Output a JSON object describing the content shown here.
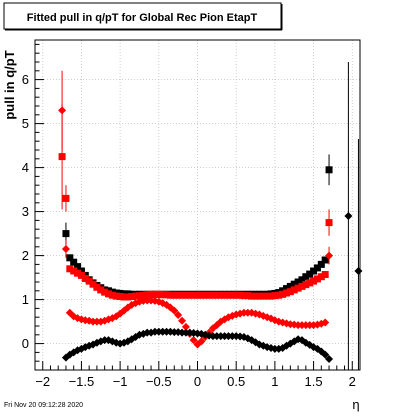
{
  "title": "Fitted pull in q/pT for Global Rec Pion EtapT",
  "footer": "Fri Nov 20 09:12:28 2020",
  "chart_data": {
    "type": "scatter",
    "title": "Fitted pull in q/pT for Global Rec Pion EtapT",
    "xlabel": "η",
    "ylabel": "pull in q/pT",
    "xlim": [
      -2.1,
      2.1
    ],
    "ylim": [
      -0.6,
      6.9
    ],
    "grid": true,
    "xticks": [
      -2,
      -1.5,
      -1,
      -0.5,
      0,
      0.5,
      1,
      1.5,
      2
    ],
    "xtick_labels": [
      "−2",
      "−1.5",
      "−1",
      "−0.5",
      "0",
      "0.5",
      "1",
      "1.5",
      "2"
    ],
    "yticks": [
      0,
      1,
      2,
      3,
      4,
      5,
      6
    ],
    "ytick_labels": [
      "0",
      "1",
      "2",
      "3",
      "4",
      "5",
      "6"
    ],
    "colors": {
      "black": "#000000",
      "red": "#ff0000",
      "grid": "#c0c0c0"
    },
    "series": [
      {
        "color": "#000000",
        "marker": "square",
        "x": [
          -1.7,
          -1.65,
          -1.6,
          -1.55,
          -1.5,
          -1.45,
          -1.4,
          -1.35,
          -1.3,
          -1.25,
          -1.2,
          -1.15,
          -1.1,
          -1.05,
          -1.0,
          -0.95,
          -0.9,
          -0.85,
          -0.8,
          -0.75,
          -0.7,
          -0.65,
          -0.6,
          -0.55,
          -0.5,
          -0.45,
          -0.4,
          -0.35,
          -0.3,
          -0.25,
          -0.2,
          -0.15,
          -0.1,
          -0.05,
          0.0,
          0.05,
          0.1,
          0.15,
          0.2,
          0.25,
          0.3,
          0.35,
          0.4,
          0.45,
          0.5,
          0.55,
          0.6,
          0.65,
          0.7,
          0.75,
          0.8,
          0.85,
          0.9,
          0.95,
          1.0,
          1.05,
          1.1,
          1.15,
          1.2,
          1.25,
          1.3,
          1.35,
          1.4,
          1.45,
          1.5,
          1.55,
          1.6,
          1.65,
          1.7
        ],
        "y": [
          2.5,
          1.95,
          1.85,
          1.75,
          1.65,
          1.55,
          1.45,
          1.38,
          1.32,
          1.27,
          1.22,
          1.2,
          1.17,
          1.15,
          1.14,
          1.13,
          1.13,
          1.12,
          1.12,
          1.12,
          1.12,
          1.12,
          1.12,
          1.12,
          1.12,
          1.12,
          1.12,
          1.12,
          1.12,
          1.12,
          1.12,
          1.12,
          1.12,
          1.12,
          1.12,
          1.12,
          1.12,
          1.12,
          1.12,
          1.12,
          1.12,
          1.12,
          1.12,
          1.12,
          1.12,
          1.12,
          1.12,
          1.12,
          1.12,
          1.12,
          1.12,
          1.12,
          1.12,
          1.13,
          1.14,
          1.16,
          1.2,
          1.25,
          1.3,
          1.35,
          1.4,
          1.45,
          1.52,
          1.58,
          1.65,
          1.72,
          1.8,
          1.9,
          3.95
        ],
        "yerr": [
          0.25,
          0.05,
          0.03,
          0.02,
          0.02,
          0.02,
          0.02,
          0.02,
          0.02,
          0.02,
          0.02,
          0.02,
          0.02,
          0.02,
          0.02,
          0.02,
          0.02,
          0.02,
          0.02,
          0.02,
          0.02,
          0.02,
          0.02,
          0.02,
          0.02,
          0.02,
          0.02,
          0.02,
          0.02,
          0.02,
          0.02,
          0.02,
          0.02,
          0.02,
          0.02,
          0.02,
          0.02,
          0.02,
          0.02,
          0.02,
          0.02,
          0.02,
          0.02,
          0.02,
          0.02,
          0.02,
          0.02,
          0.02,
          0.02,
          0.02,
          0.02,
          0.02,
          0.02,
          0.02,
          0.02,
          0.02,
          0.02,
          0.02,
          0.02,
          0.02,
          0.02,
          0.02,
          0.02,
          0.02,
          0.02,
          0.02,
          0.02,
          0.05,
          0.35
        ]
      },
      {
        "color": "#ff0000",
        "marker": "square",
        "x": [
          -1.75,
          -1.7,
          -1.65,
          -1.6,
          -1.55,
          -1.5,
          -1.45,
          -1.4,
          -1.35,
          -1.3,
          -1.25,
          -1.2,
          -1.15,
          -1.1,
          -1.05,
          -1.0,
          -0.95,
          -0.9,
          -0.85,
          -0.8,
          -0.75,
          -0.7,
          -0.65,
          -0.6,
          -0.55,
          -0.5,
          -0.45,
          -0.4,
          -0.35,
          -0.3,
          -0.25,
          -0.2,
          -0.15,
          -0.1,
          -0.05,
          0.0,
          0.05,
          0.1,
          0.15,
          0.2,
          0.25,
          0.3,
          0.35,
          0.4,
          0.45,
          0.5,
          0.55,
          0.6,
          0.65,
          0.7,
          0.75,
          0.8,
          0.85,
          0.9,
          0.95,
          1.0,
          1.05,
          1.1,
          1.15,
          1.2,
          1.25,
          1.3,
          1.35,
          1.4,
          1.45,
          1.5,
          1.55,
          1.6,
          1.65,
          1.7
        ],
        "y": [
          4.25,
          3.3,
          1.7,
          1.65,
          1.6,
          1.55,
          1.48,
          1.42,
          1.35,
          1.28,
          1.22,
          1.17,
          1.13,
          1.1,
          1.08,
          1.07,
          1.06,
          1.06,
          1.07,
          1.08,
          1.09,
          1.1,
          1.11,
          1.12,
          1.12,
          1.12,
          1.11,
          1.11,
          1.1,
          1.1,
          1.1,
          1.1,
          1.1,
          1.1,
          1.1,
          1.1,
          1.1,
          1.1,
          1.1,
          1.1,
          1.1,
          1.1,
          1.1,
          1.1,
          1.1,
          1.1,
          1.1,
          1.09,
          1.09,
          1.08,
          1.08,
          1.08,
          1.08,
          1.08,
          1.08,
          1.09,
          1.1,
          1.12,
          1.15,
          1.18,
          1.22,
          1.26,
          1.3,
          1.34,
          1.38,
          1.42,
          1.47,
          1.52,
          1.57,
          2.75
        ],
        "yerr": [
          1.2,
          0.3,
          0.05,
          0.03,
          0.02,
          0.02,
          0.02,
          0.02,
          0.02,
          0.02,
          0.02,
          0.02,
          0.02,
          0.02,
          0.02,
          0.02,
          0.02,
          0.02,
          0.02,
          0.02,
          0.02,
          0.02,
          0.02,
          0.02,
          0.02,
          0.02,
          0.02,
          0.02,
          0.02,
          0.02,
          0.02,
          0.02,
          0.02,
          0.02,
          0.02,
          0.02,
          0.02,
          0.02,
          0.02,
          0.02,
          0.02,
          0.02,
          0.02,
          0.02,
          0.02,
          0.02,
          0.02,
          0.02,
          0.02,
          0.02,
          0.02,
          0.02,
          0.02,
          0.02,
          0.02,
          0.02,
          0.02,
          0.02,
          0.02,
          0.02,
          0.02,
          0.02,
          0.02,
          0.02,
          0.02,
          0.02,
          0.02,
          0.02,
          0.05,
          0.3
        ]
      },
      {
        "color": "#ff0000",
        "marker": "diamond",
        "x": [
          -1.75,
          -1.7,
          -1.65,
          -1.6,
          -1.55,
          -1.5,
          -1.45,
          -1.4,
          -1.35,
          -1.3,
          -1.25,
          -1.2,
          -1.15,
          -1.1,
          -1.05,
          -1.0,
          -0.95,
          -0.9,
          -0.85,
          -0.8,
          -0.75,
          -0.7,
          -0.65,
          -0.6,
          -0.55,
          -0.5,
          -0.45,
          -0.4,
          -0.35,
          -0.3,
          -0.25,
          -0.2,
          -0.15,
          -0.1,
          -0.05,
          0.0,
          0.05,
          0.1,
          0.15,
          0.2,
          0.25,
          0.3,
          0.35,
          0.4,
          0.45,
          0.5,
          0.55,
          0.6,
          0.65,
          0.7,
          0.75,
          0.8,
          0.85,
          0.9,
          0.95,
          1.0,
          1.05,
          1.1,
          1.15,
          1.2,
          1.25,
          1.3,
          1.35,
          1.4,
          1.45,
          1.5,
          1.55,
          1.6,
          1.65,
          1.7
        ],
        "y": [
          5.3,
          2.15,
          0.7,
          0.62,
          0.58,
          0.55,
          0.53,
          0.52,
          0.5,
          0.5,
          0.5,
          0.52,
          0.55,
          0.58,
          0.62,
          0.68,
          0.75,
          0.82,
          0.88,
          0.92,
          0.95,
          0.97,
          0.98,
          0.98,
          0.97,
          0.95,
          0.92,
          0.88,
          0.82,
          0.75,
          0.65,
          0.52,
          0.38,
          0.22,
          0.08,
          -0.02,
          0.05,
          0.15,
          0.25,
          0.35,
          0.42,
          0.5,
          0.55,
          0.6,
          0.63,
          0.66,
          0.68,
          0.7,
          0.7,
          0.7,
          0.68,
          0.66,
          0.63,
          0.6,
          0.57,
          0.53,
          0.5,
          0.48,
          0.46,
          0.44,
          0.43,
          0.42,
          0.42,
          0.42,
          0.42,
          0.42,
          0.43,
          0.45,
          0.48,
          2.0
        ],
        "yerr": [
          0.9,
          0.2,
          0.03,
          0.02,
          0.02,
          0.02,
          0.02,
          0.02,
          0.02,
          0.02,
          0.02,
          0.02,
          0.02,
          0.02,
          0.02,
          0.02,
          0.02,
          0.02,
          0.02,
          0.02,
          0.02,
          0.02,
          0.02,
          0.02,
          0.02,
          0.02,
          0.02,
          0.02,
          0.02,
          0.02,
          0.02,
          0.02,
          0.02,
          0.02,
          0.02,
          0.02,
          0.02,
          0.02,
          0.02,
          0.02,
          0.02,
          0.02,
          0.02,
          0.02,
          0.02,
          0.02,
          0.02,
          0.02,
          0.02,
          0.02,
          0.02,
          0.02,
          0.02,
          0.02,
          0.02,
          0.02,
          0.02,
          0.02,
          0.02,
          0.02,
          0.02,
          0.02,
          0.02,
          0.02,
          0.02,
          0.02,
          0.02,
          0.02,
          0.05,
          0.2
        ]
      },
      {
        "color": "#000000",
        "marker": "diamond",
        "x": [
          -1.7,
          -1.65,
          -1.6,
          -1.55,
          -1.5,
          -1.45,
          -1.4,
          -1.35,
          -1.3,
          -1.25,
          -1.2,
          -1.15,
          -1.1,
          -1.05,
          -1.0,
          -0.95,
          -0.9,
          -0.85,
          -0.8,
          -0.75,
          -0.7,
          -0.65,
          -0.6,
          -0.55,
          -0.5,
          -0.45,
          -0.4,
          -0.35,
          -0.3,
          -0.25,
          -0.2,
          -0.15,
          -0.1,
          -0.05,
          0.0,
          0.05,
          0.1,
          0.15,
          0.2,
          0.25,
          0.3,
          0.35,
          0.4,
          0.45,
          0.5,
          0.55,
          0.6,
          0.65,
          0.7,
          0.75,
          0.8,
          0.85,
          0.9,
          0.95,
          1.0,
          1.05,
          1.1,
          1.15,
          1.2,
          1.25,
          1.3,
          1.35,
          1.4,
          1.45,
          1.5,
          1.55,
          1.6,
          1.65,
          1.7,
          1.95,
          2.08
        ],
        "y": [
          -0.32,
          -0.25,
          -0.2,
          -0.15,
          -0.12,
          -0.08,
          -0.05,
          -0.02,
          0.02,
          0.05,
          0.08,
          0.08,
          0.05,
          0.02,
          0.0,
          0.02,
          0.05,
          0.1,
          0.15,
          0.2,
          0.22,
          0.25,
          0.25,
          0.27,
          0.27,
          0.27,
          0.27,
          0.27,
          0.26,
          0.26,
          0.25,
          0.25,
          0.25,
          0.24,
          0.23,
          0.22,
          0.2,
          0.18,
          0.17,
          0.17,
          0.17,
          0.17,
          0.17,
          0.17,
          0.17,
          0.16,
          0.15,
          0.12,
          0.08,
          0.03,
          -0.02,
          -0.05,
          -0.08,
          -0.1,
          -0.12,
          -0.12,
          -0.1,
          -0.05,
          0.0,
          0.05,
          0.1,
          0.08,
          0.02,
          -0.03,
          -0.08,
          -0.12,
          -0.18,
          -0.25,
          -0.35,
          2.9,
          1.65
        ],
        "yerr": [
          0.02,
          0.02,
          0.02,
          0.02,
          0.02,
          0.02,
          0.02,
          0.02,
          0.02,
          0.02,
          0.02,
          0.02,
          0.02,
          0.02,
          0.02,
          0.02,
          0.02,
          0.02,
          0.02,
          0.02,
          0.02,
          0.02,
          0.02,
          0.02,
          0.02,
          0.02,
          0.02,
          0.02,
          0.02,
          0.02,
          0.02,
          0.02,
          0.02,
          0.02,
          0.02,
          0.02,
          0.02,
          0.02,
          0.02,
          0.02,
          0.02,
          0.02,
          0.02,
          0.02,
          0.02,
          0.02,
          0.02,
          0.02,
          0.02,
          0.02,
          0.02,
          0.02,
          0.02,
          0.02,
          0.02,
          0.02,
          0.02,
          0.02,
          0.02,
          0.02,
          0.02,
          0.02,
          0.02,
          0.02,
          0.02,
          0.02,
          0.02,
          0.02,
          0.05,
          3.5,
          3.0
        ]
      }
    ]
  }
}
